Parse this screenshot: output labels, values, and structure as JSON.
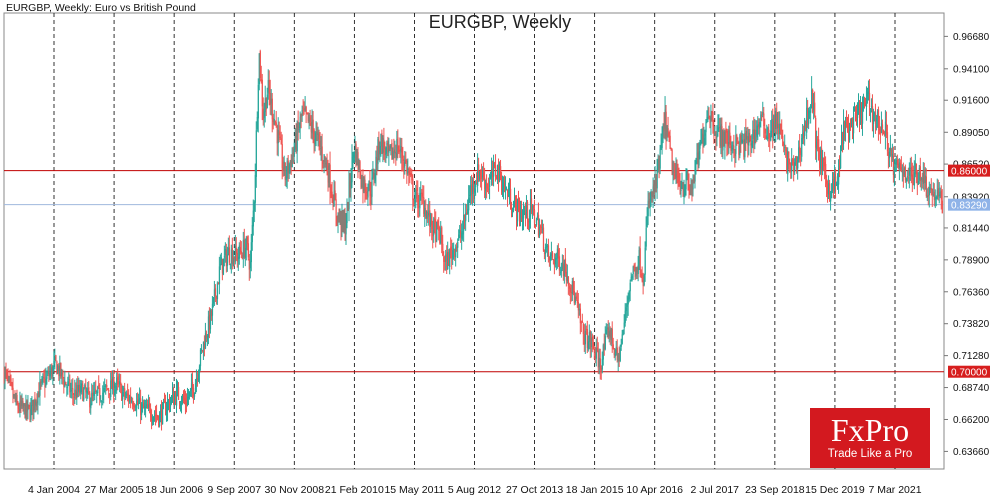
{
  "header": {
    "symbol_caption": "EURGBP, Weekly:  Euro vs British Pound",
    "chart_title": "EURGBP, Weekly"
  },
  "logo": {
    "brand": "FxPro",
    "tagline": "Trade Like a Pro"
  },
  "colors": {
    "up": "#26a69a",
    "down": "#ef5350",
    "level_line": "#c00000",
    "current_line": "#9fb8dd",
    "current_label_bg": "#8fb3e8",
    "level_label_bg": "#d71e1e",
    "brand": "#d3191f"
  },
  "chart_data": {
    "type": "candlestick",
    "title": "EURGBP, Weekly",
    "ylim": [
      0.6226,
      0.9854
    ],
    "y_ticks": [
      "0.96680",
      "0.94100",
      "0.91600",
      "0.89050",
      "0.86520",
      "0.83920",
      "0.81440",
      "0.78900",
      "0.76360",
      "0.73820",
      "0.71280",
      "0.68740",
      "0.66200",
      "0.63660"
    ],
    "x_ticks": [
      "4 Jan 2004",
      "27 Mar 2005",
      "18 Jun 2006",
      "9 Sep 2007",
      "30 Nov 2008",
      "21 Feb 2010",
      "15 May 2011",
      "5 Aug 2012",
      "27 Oct 2013",
      "18 Jan 2015",
      "10 Apr 2016",
      "2 Jul 2017",
      "23 Sep 2018",
      "15 Dec 2019",
      "7 Mar 2021"
    ],
    "grid": "vertical dashed",
    "levels": [
      {
        "value": 0.86,
        "label": "0.86000"
      },
      {
        "value": 0.7,
        "label": "0.70000"
      }
    ],
    "current_price": {
      "value": 0.8329,
      "label": "0.83290"
    },
    "series": [
      {
        "values": [
          [
            "2004-01",
            0.7
          ],
          [
            "2004-04",
            0.672
          ],
          [
            "2004-07",
            0.668
          ],
          [
            "2004-09",
            0.685
          ],
          [
            "2004-11",
            0.695
          ],
          [
            "2005-01",
            0.706
          ],
          [
            "2005-03",
            0.692
          ],
          [
            "2005-05",
            0.682
          ],
          [
            "2005-07",
            0.685
          ],
          [
            "2005-09",
            0.678
          ],
          [
            "2005-11",
            0.682
          ],
          [
            "2006-01",
            0.686
          ],
          [
            "2006-03",
            0.69
          ],
          [
            "2006-05",
            0.68
          ],
          [
            "2006-07",
            0.678
          ],
          [
            "2006-09",
            0.67
          ],
          [
            "2006-11",
            0.668
          ],
          [
            "2007-01",
            0.664
          ],
          [
            "2007-03",
            0.675
          ],
          [
            "2007-05",
            0.682
          ],
          [
            "2007-07",
            0.676
          ],
          [
            "2007-09",
            0.688
          ],
          [
            "2007-11",
            0.72
          ],
          [
            "2008-01",
            0.745
          ],
          [
            "2008-03",
            0.782
          ],
          [
            "2008-05",
            0.795
          ],
          [
            "2008-07",
            0.792
          ],
          [
            "2008-09",
            0.8
          ],
          [
            "2008-10",
            0.785
          ],
          [
            "2008-11",
            0.845
          ],
          [
            "2008-12",
            0.955
          ],
          [
            "2009-01",
            0.905
          ],
          [
            "2009-02",
            0.925
          ],
          [
            "2009-04",
            0.895
          ],
          [
            "2009-06",
            0.855
          ],
          [
            "2009-08",
            0.875
          ],
          [
            "2009-10",
            0.905
          ],
          [
            "2009-12",
            0.895
          ],
          [
            "2010-02",
            0.88
          ],
          [
            "2010-04",
            0.86
          ],
          [
            "2010-06",
            0.825
          ],
          [
            "2010-08",
            0.815
          ],
          [
            "2010-10",
            0.88
          ],
          [
            "2010-12",
            0.85
          ],
          [
            "2011-02",
            0.845
          ],
          [
            "2011-04",
            0.885
          ],
          [
            "2011-06",
            0.87
          ],
          [
            "2011-08",
            0.88
          ],
          [
            "2011-10",
            0.865
          ],
          [
            "2011-12",
            0.838
          ],
          [
            "2012-02",
            0.835
          ],
          [
            "2012-04",
            0.815
          ],
          [
            "2012-06",
            0.808
          ],
          [
            "2012-07",
            0.785
          ],
          [
            "2012-09",
            0.798
          ],
          [
            "2012-11",
            0.81
          ],
          [
            "2013-01",
            0.845
          ],
          [
            "2013-03",
            0.86
          ],
          [
            "2013-05",
            0.848
          ],
          [
            "2013-07",
            0.862
          ],
          [
            "2013-09",
            0.845
          ],
          [
            "2013-11",
            0.832
          ],
          [
            "2014-01",
            0.825
          ],
          [
            "2014-03",
            0.828
          ],
          [
            "2014-05",
            0.815
          ],
          [
            "2014-07",
            0.79
          ],
          [
            "2014-09",
            0.79
          ],
          [
            "2014-11",
            0.782
          ],
          [
            "2015-01",
            0.76
          ],
          [
            "2015-03",
            0.73
          ],
          [
            "2015-05",
            0.722
          ],
          [
            "2015-07",
            0.705
          ],
          [
            "2015-09",
            0.735
          ],
          [
            "2015-11",
            0.708
          ],
          [
            "2015-12",
            0.725
          ],
          [
            "2016-02",
            0.775
          ],
          [
            "2016-04",
            0.79
          ],
          [
            "2016-05",
            0.775
          ],
          [
            "2016-06",
            0.83
          ],
          [
            "2016-08",
            0.85
          ],
          [
            "2016-10",
            0.9
          ],
          [
            "2016-12",
            0.855
          ],
          [
            "2017-02",
            0.85
          ],
          [
            "2017-04",
            0.845
          ],
          [
            "2017-06",
            0.875
          ],
          [
            "2017-08",
            0.91
          ],
          [
            "2017-10",
            0.89
          ],
          [
            "2017-12",
            0.885
          ],
          [
            "2018-02",
            0.88
          ],
          [
            "2018-04",
            0.88
          ],
          [
            "2018-06",
            0.885
          ],
          [
            "2018-08",
            0.9
          ],
          [
            "2018-10",
            0.89
          ],
          [
            "2018-12",
            0.9
          ],
          [
            "2019-02",
            0.868
          ],
          [
            "2019-04",
            0.86
          ],
          [
            "2019-06",
            0.89
          ],
          [
            "2019-08",
            0.92
          ],
          [
            "2019-09",
            0.88
          ],
          [
            "2019-11",
            0.855
          ],
          [
            "2019-12",
            0.845
          ],
          [
            "2020-02",
            0.85
          ],
          [
            "2020-03",
            0.89
          ],
          [
            "2020-05",
            0.895
          ],
          [
            "2020-07",
            0.905
          ],
          [
            "2020-09",
            0.915
          ],
          [
            "2020-11",
            0.9
          ],
          [
            "2021-01",
            0.89
          ],
          [
            "2021-03",
            0.86
          ],
          [
            "2021-05",
            0.862
          ],
          [
            "2021-07",
            0.855
          ],
          [
            "2021-09",
            0.86
          ],
          [
            "2021-11",
            0.845
          ],
          [
            "2022-01",
            0.84
          ],
          [
            "2022-02",
            0.833
          ]
        ]
      }
    ]
  }
}
